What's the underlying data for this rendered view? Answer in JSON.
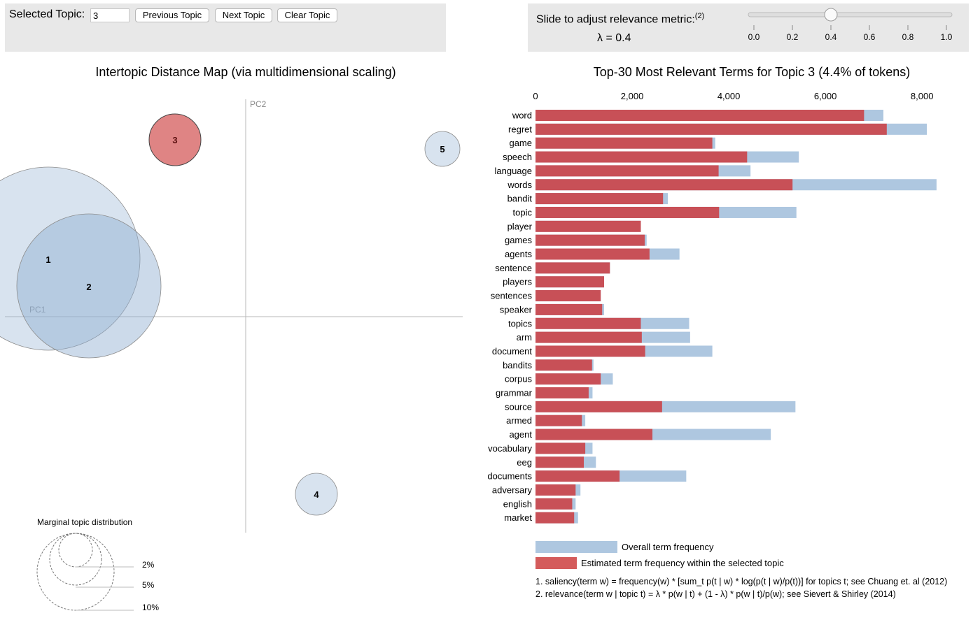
{
  "controls": {
    "selected_topic_label": "Selected Topic:",
    "selected_topic_value": "3",
    "prev_button": "Previous Topic",
    "next_button": "Next Topic",
    "clear_button": "Clear Topic"
  },
  "relevance": {
    "label": "Slide to adjust relevance metric:",
    "footnote_ref": "(2)",
    "lambda_text": "λ = 0.4",
    "lambda_value": 0.4,
    "ticks": [
      "0.0",
      "0.2",
      "0.4",
      "0.6",
      "0.8",
      "1.0"
    ]
  },
  "map": {
    "title": "Intertopic Distance Map (via multidimensional scaling)",
    "pc1_label": "PC1",
    "pc2_label": "PC2",
    "topics": [
      {
        "id": "1",
        "selected": false
      },
      {
        "id": "2",
        "selected": false
      },
      {
        "id": "3",
        "selected": true
      },
      {
        "id": "4",
        "selected": false
      },
      {
        "id": "5",
        "selected": false
      }
    ],
    "marginal": {
      "title": "Marginal topic distribution",
      "labels": [
        "2%",
        "5%",
        "10%"
      ]
    }
  },
  "bars": {
    "title": "Top-30 Most Relevant Terms for Topic 3 (4.4% of tokens)",
    "legend_overall": "Overall term frequency",
    "legend_topic": "Estimated term frequency within the selected topic",
    "footnote1": "1. saliency(term w) = frequency(w) * [sum_t p(t | w) * log(p(t | w)/p(t))] for topics t; see Chuang et. al (2012)",
    "footnote2": "2. relevance(term w | topic t) = λ * p(w | t) + (1 - λ) * p(w | t)/p(w); see Sievert & Shirley (2014)"
  },
  "chart_data": {
    "type": "bar",
    "title": "Top-30 Most Relevant Terms for Topic 3 (4.4% of tokens)",
    "orientation": "horizontal",
    "xlim": [
      0,
      8300
    ],
    "x_ticks": [
      0,
      2000,
      4000,
      6000,
      8000
    ],
    "x_tick_labels": [
      "0",
      "2,000",
      "4,000",
      "6,000",
      "8,000"
    ],
    "categories": [
      "word",
      "regret",
      "game",
      "speech",
      "language",
      "words",
      "bandit",
      "topic",
      "player",
      "games",
      "agents",
      "sentence",
      "players",
      "sentences",
      "speaker",
      "topics",
      "arm",
      "document",
      "bandits",
      "corpus",
      "grammar",
      "source",
      "armed",
      "agent",
      "vocabulary",
      "eeg",
      "documents",
      "adversary",
      "english",
      "market"
    ],
    "series": [
      {
        "name": "Overall term frequency",
        "color": "#aec7e0",
        "values": [
          7200,
          8100,
          3720,
          5450,
          4450,
          8300,
          2740,
          5400,
          2180,
          2300,
          2980,
          1540,
          1420,
          1350,
          1420,
          3180,
          3200,
          3660,
          1200,
          1600,
          1180,
          5380,
          1030,
          4870,
          1180,
          1250,
          3120,
          930,
          830,
          880
        ]
      },
      {
        "name": "Estimated term frequency within the selected topic",
        "color": "#c85057",
        "values": [
          6800,
          7270,
          3660,
          4380,
          3790,
          5320,
          2640,
          3800,
          2180,
          2260,
          2360,
          1540,
          1420,
          1350,
          1380,
          2180,
          2200,
          2270,
          1170,
          1350,
          1100,
          2620,
          960,
          2420,
          1030,
          1000,
          1740,
          830,
          760,
          800
        ]
      }
    ]
  }
}
